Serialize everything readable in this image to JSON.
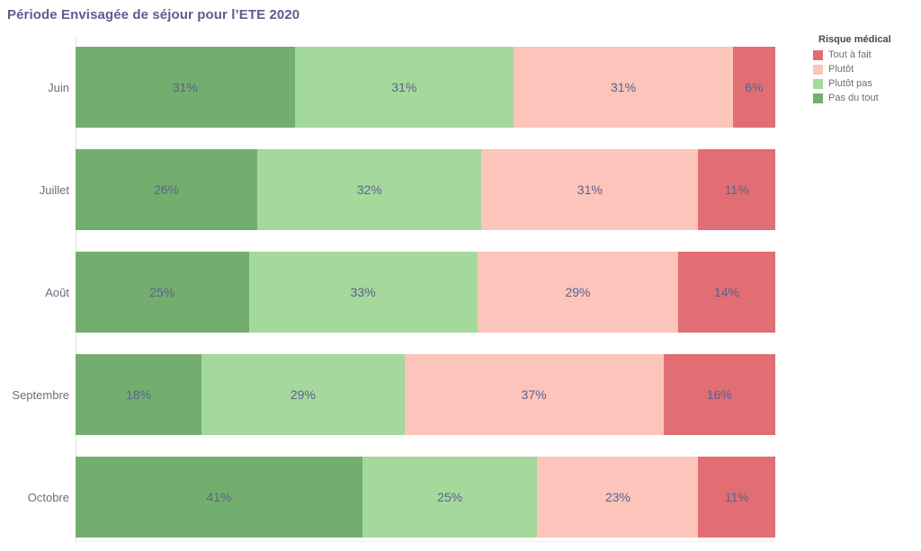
{
  "title": "Période Envisagée de séjour pour l’ETE 2020",
  "legend": {
    "title": "Risque médical",
    "items": [
      {
        "label": "Tout à fait",
        "color": "#e06e73"
      },
      {
        "label": "Plutôt",
        "color": "#fcc4ba"
      },
      {
        "label": "Plutôt pas",
        "color": "#a5d89b"
      },
      {
        "label": "Pas du tout",
        "color": "#74ae6e"
      }
    ]
  },
  "colors": {
    "title_text": "#5a5e8f",
    "bar_label_text": "#5b6190",
    "category_text": "#6c6c7e",
    "axis_line": "#e4e4e4"
  },
  "chart_data": {
    "type": "bar",
    "orientation": "horizontal",
    "stacked_percent": true,
    "title": "Période Envisagée de séjour pour l’ETE 2020",
    "categories": [
      "Juin",
      "Juillet",
      "Août",
      "Septembre",
      "Octobre"
    ],
    "series": [
      {
        "name": "Pas du tout",
        "color": "#74ae6e",
        "values": [
          31,
          26,
          25,
          18,
          41
        ]
      },
      {
        "name": "Plutôt pas",
        "color": "#a5d89b",
        "values": [
          31,
          32,
          33,
          29,
          25
        ]
      },
      {
        "name": "Plutôt",
        "color": "#fcc4ba",
        "values": [
          31,
          31,
          29,
          37,
          23
        ]
      },
      {
        "name": "Tout à fait",
        "color": "#e06e73",
        "values": [
          6,
          11,
          14,
          16,
          11
        ]
      }
    ],
    "value_format": "percent",
    "value_labels": [
      [
        "31%",
        "31%",
        "31%",
        "6%"
      ],
      [
        "26%",
        "32%",
        "31%",
        "11%"
      ],
      [
        "25%",
        "33%",
        "29%",
        "14%"
      ],
      [
        "18%",
        "29%",
        "37%",
        "16%"
      ],
      [
        "41%",
        "25%",
        "23%",
        "11%"
      ]
    ],
    "xlim": [
      0,
      100
    ],
    "grid": false,
    "legend_title": "Risque médical",
    "legend_position": "top-right"
  }
}
